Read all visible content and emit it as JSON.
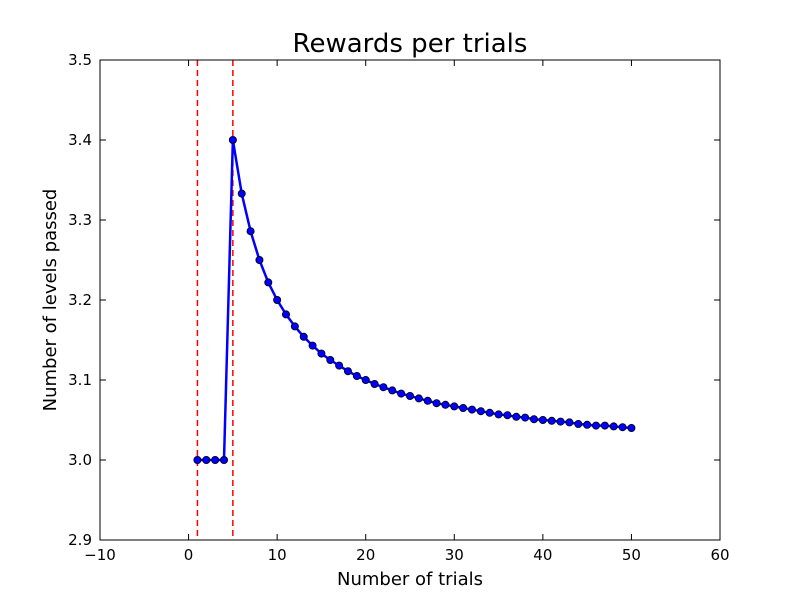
{
  "chart_data": {
    "type": "line",
    "title": "Rewards per trials",
    "xlabel": "Number of trials",
    "ylabel": "Number of levels passed",
    "xlim": [
      -10,
      60
    ],
    "ylim": [
      2.9,
      3.5
    ],
    "xticks": [
      "−10",
      "0",
      "10",
      "20",
      "30",
      "40",
      "50",
      "60"
    ],
    "yticks": [
      "2.9",
      "3.0",
      "3.1",
      "3.2",
      "3.3",
      "3.4",
      "3.5"
    ],
    "grid": false,
    "series": [
      {
        "color": "#0000ff",
        "marker": "circle",
        "points": [
          [
            1,
            3.0
          ],
          [
            2,
            3.0
          ],
          [
            3,
            3.0
          ],
          [
            4,
            3.0
          ],
          [
            5,
            3.4
          ],
          [
            6,
            3.333
          ],
          [
            7,
            3.286
          ],
          [
            8,
            3.25
          ],
          [
            9,
            3.222
          ],
          [
            10,
            3.2
          ],
          [
            11,
            3.182
          ],
          [
            12,
            3.167
          ],
          [
            13,
            3.154
          ],
          [
            14,
            3.143
          ],
          [
            15,
            3.133
          ],
          [
            16,
            3.125
          ],
          [
            17,
            3.118
          ],
          [
            18,
            3.111
          ],
          [
            19,
            3.105
          ],
          [
            20,
            3.1
          ],
          [
            21,
            3.095
          ],
          [
            22,
            3.091
          ],
          [
            23,
            3.087
          ],
          [
            24,
            3.083
          ],
          [
            25,
            3.08
          ],
          [
            26,
            3.077
          ],
          [
            27,
            3.074
          ],
          [
            28,
            3.071
          ],
          [
            29,
            3.069
          ],
          [
            30,
            3.067
          ],
          [
            31,
            3.065
          ],
          [
            32,
            3.063
          ],
          [
            33,
            3.061
          ],
          [
            34,
            3.059
          ],
          [
            35,
            3.057
          ],
          [
            36,
            3.056
          ],
          [
            37,
            3.054
          ],
          [
            38,
            3.053
          ],
          [
            39,
            3.051
          ],
          [
            40,
            3.05
          ],
          [
            41,
            3.049
          ],
          [
            42,
            3.048
          ],
          [
            43,
            3.047
          ],
          [
            44,
            3.045
          ],
          [
            45,
            3.044
          ],
          [
            46,
            3.043
          ],
          [
            47,
            3.043
          ],
          [
            48,
            3.042
          ],
          [
            49,
            3.041
          ],
          [
            50,
            3.04
          ]
        ]
      }
    ],
    "vlines": [
      {
        "x": 1,
        "color": "#ff0000",
        "style": "dashed"
      },
      {
        "x": 5,
        "color": "#ff0000",
        "style": "dashed"
      }
    ]
  }
}
